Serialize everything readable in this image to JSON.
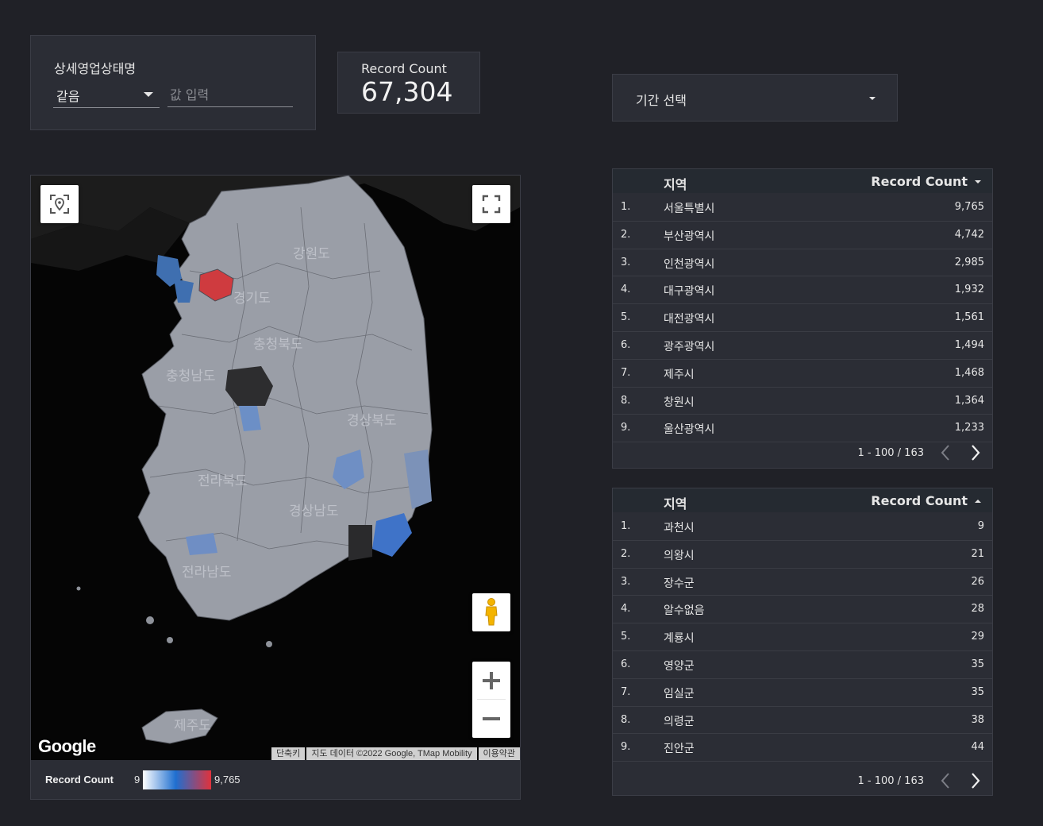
{
  "filter": {
    "title": "상세영업상태명",
    "operator": "같음",
    "placeholder": "값 입력"
  },
  "scorecard": {
    "label": "Record Count",
    "value": "67,304"
  },
  "date_range": {
    "label": "기간 선택"
  },
  "map": {
    "labels": [
      "강원도",
      "경기도",
      "충청북도",
      "충청남도",
      "경상북도",
      "전라북도",
      "경상남도",
      "전라남도",
      "제주도"
    ],
    "attribution": [
      "단축키",
      "지도 데이터 ©2022 Google, TMap Mobility",
      "이용약관"
    ],
    "google_logo": "Google",
    "legend": {
      "title": "Record Count",
      "min": "9",
      "max": "9,765",
      "colors": [
        "#ffffff",
        "#1f6fd0",
        "#e0323c"
      ]
    }
  },
  "table_top": {
    "header": {
      "region": "지역",
      "count": "Record Count"
    },
    "sort": "desc",
    "rows": [
      {
        "idx": "1.",
        "name": "서울특별시",
        "value": "9,765"
      },
      {
        "idx": "2.",
        "name": "부산광역시",
        "value": "4,742"
      },
      {
        "idx": "3.",
        "name": "인천광역시",
        "value": "2,985"
      },
      {
        "idx": "4.",
        "name": "대구광역시",
        "value": "1,932"
      },
      {
        "idx": "5.",
        "name": "대전광역시",
        "value": "1,561"
      },
      {
        "idx": "6.",
        "name": "광주광역시",
        "value": "1,494"
      },
      {
        "idx": "7.",
        "name": "제주시",
        "value": "1,468"
      },
      {
        "idx": "8.",
        "name": "창원시",
        "value": "1,364"
      },
      {
        "idx": "9.",
        "name": "울산광역시",
        "value": "1,233"
      }
    ],
    "pager": "1 - 100 / 163"
  },
  "table_bottom": {
    "header": {
      "region": "지역",
      "count": "Record Count"
    },
    "sort": "asc",
    "rows": [
      {
        "idx": "1.",
        "name": "과천시",
        "value": "9"
      },
      {
        "idx": "2.",
        "name": "의왕시",
        "value": "21"
      },
      {
        "idx": "3.",
        "name": "장수군",
        "value": "26"
      },
      {
        "idx": "4.",
        "name": "알수없음",
        "value": "28"
      },
      {
        "idx": "5.",
        "name": "계룡시",
        "value": "29"
      },
      {
        "idx": "6.",
        "name": "영양군",
        "value": "35"
      },
      {
        "idx": "7.",
        "name": "임실군",
        "value": "35"
      },
      {
        "idx": "8.",
        "name": "의령군",
        "value": "38"
      },
      {
        "idx": "9.",
        "name": "진안군",
        "value": "44"
      }
    ],
    "pager": "1 - 100 / 163"
  }
}
